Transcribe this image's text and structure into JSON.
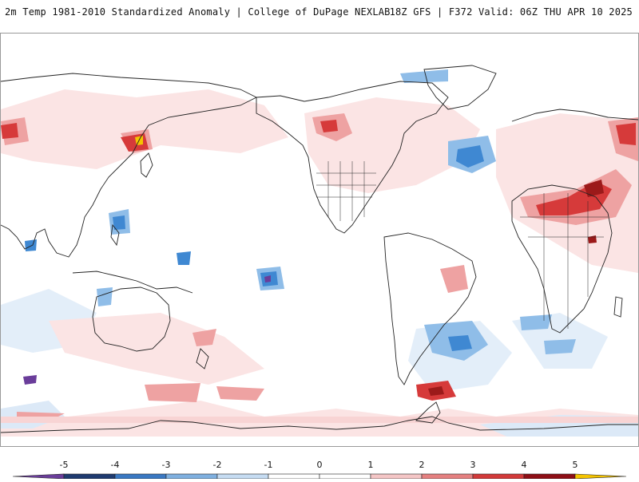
{
  "header": {
    "title": "2m Temp 1981-2010 Standardized Anomaly | College of DuPage NEXLAB",
    "run_info": "18Z GFS | F372 Valid: 06Z THU APR 10 2025"
  },
  "colorbar": {
    "ticks": [
      "-5",
      "-4",
      "-3",
      "-2",
      "-1",
      "0",
      "1",
      "2",
      "3",
      "4",
      "5"
    ],
    "colors": [
      "#6a3d9a",
      "#1f3b70",
      "#3a78c2",
      "#7fb0e0",
      "#c6dcf2",
      "#ffffff",
      "#ffffff",
      "#f4c6c6",
      "#e58080",
      "#d23a3a",
      "#8e0f16",
      "#f5c400"
    ]
  },
  "map": {
    "colors": {
      "warm_light": "#fadcdc",
      "warm_mid": "#eea2a2",
      "warm_strong": "#d63a3a",
      "warm_deep": "#9c1a1a",
      "cool_light": "#dce9f7",
      "cool_mid": "#8fbde8",
      "cool_strong": "#3f88d2",
      "extreme_warm": "#f5c400",
      "extreme_cool": "#6a3d9a",
      "coastline": "#222222"
    }
  }
}
